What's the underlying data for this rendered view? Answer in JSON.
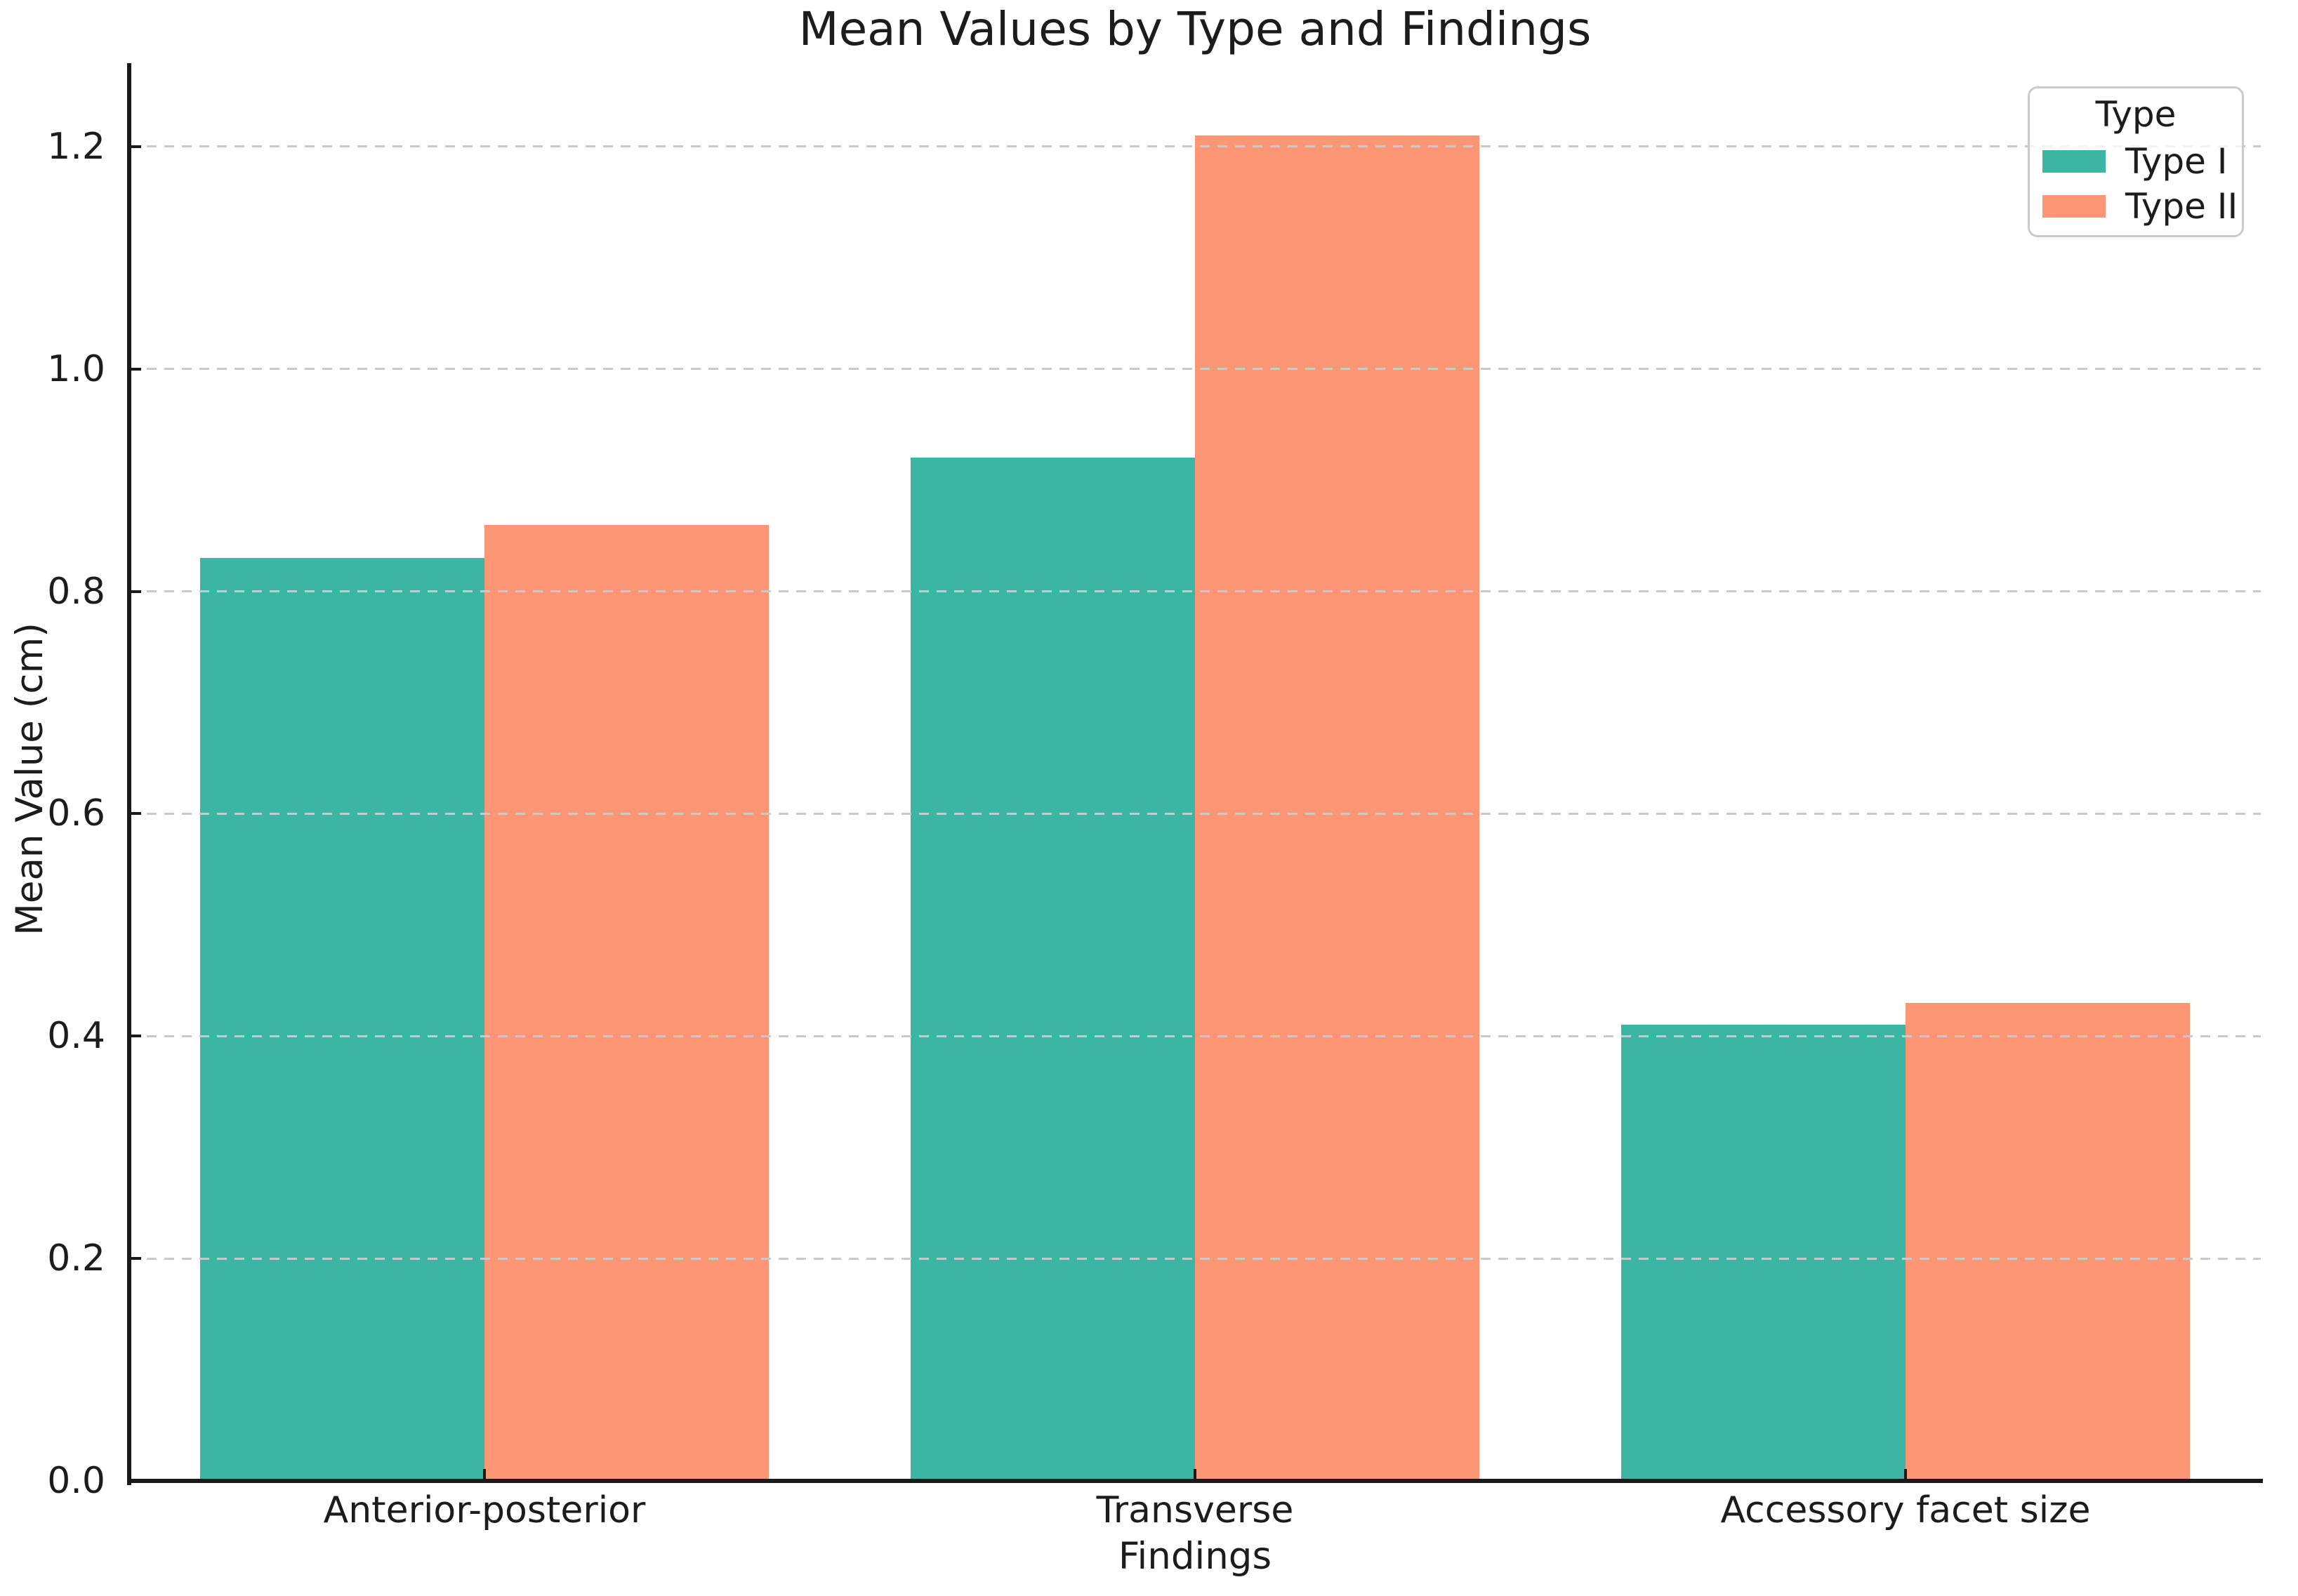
{
  "chart_data": {
    "type": "bar",
    "title": "Mean Values by Type and Findings",
    "xlabel": "Findings",
    "ylabel": "Mean Value (cm)",
    "categories": [
      "Anterior-posterior",
      "Transverse",
      "Accessory facet size"
    ],
    "series": [
      {
        "name": "Type I",
        "color": "#3db5a4",
        "values": [
          0.83,
          0.92,
          0.41
        ]
      },
      {
        "name": "Type II",
        "color": "#fd9674",
        "values": [
          0.86,
          1.21,
          0.43
        ]
      }
    ],
    "legend": {
      "title": "Type",
      "position": "upper right",
      "entries": [
        "Type I",
        "Type II"
      ]
    },
    "ylim": [
      0,
      1.275
    ],
    "yticks": [
      0.0,
      0.2,
      0.4,
      0.6,
      0.8,
      1.0,
      1.2
    ],
    "grid": "horizontal-dashed",
    "grid_color": "#c9c9c9",
    "spine_color": "#1a1a1a",
    "bar_group_width_fraction": 0.8
  }
}
